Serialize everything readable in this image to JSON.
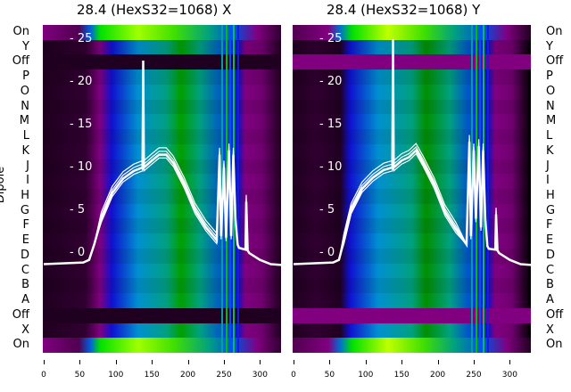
{
  "chart_data": [
    {
      "type": "heatmap",
      "title": "28.4 (HexS32=1068) X",
      "ylabel": "Dipole",
      "xlim": [
        0,
        330
      ],
      "x_ticks": [
        "0",
        "50",
        "100",
        "150",
        "200",
        "250",
        "300"
      ],
      "row_labels": [
        "On",
        "Y",
        "Off",
        "P",
        "O",
        "N",
        "M",
        "L",
        "K",
        "J",
        "I",
        "H",
        "G",
        "F",
        "E",
        "D",
        "C",
        "B",
        "A",
        "Off",
        "X",
        "On"
      ],
      "overlay": {
        "type": "line",
        "y_ticks": [
          "0",
          "5",
          "10",
          "15",
          "20",
          "25"
        ],
        "ylim": [
          -1.2,
          26.5
        ],
        "x": [
          0,
          55,
          63,
          70,
          80,
          95,
          110,
          125,
          137,
          138,
          139,
          150,
          160,
          170,
          180,
          195,
          210,
          225,
          240,
          244,
          246,
          250,
          253,
          257,
          260,
          263,
          266,
          269,
          271,
          280,
          281,
          283,
          285,
          300,
          315,
          330
        ],
        "y": [
          -1.3,
          -1.1,
          -0.8,
          1,
          4,
          7,
          8.7,
          9.6,
          10,
          22.5,
          10,
          10.8,
          11.5,
          11.5,
          10.5,
          8,
          5,
          3,
          1.5,
          11.5,
          2,
          10,
          1.8,
          12,
          2,
          11.5,
          4,
          1,
          0.6,
          0.4,
          6,
          0.3,
          0,
          -0.8,
          -1.3,
          -1.4
        ]
      },
      "colors": {
        "off": "#200020",
        "on_peak": "#a0ff00"
      }
    },
    {
      "type": "heatmap",
      "title": "28.4 (HexS32=1068) Y",
      "xlim": [
        0,
        330
      ],
      "x_ticks": [
        "0",
        "50",
        "100",
        "150",
        "200",
        "250",
        "300"
      ],
      "row_labels": [
        "On",
        "Y",
        "Off",
        "P",
        "O",
        "N",
        "M",
        "L",
        "K",
        "J",
        "I",
        "H",
        "G",
        "F",
        "E",
        "D",
        "C",
        "B",
        "A",
        "Off",
        "X",
        "On"
      ],
      "overlay": {
        "type": "line",
        "y_ticks": [
          "0",
          "5",
          "10",
          "15",
          "20",
          "25"
        ],
        "ylim": [
          -1.2,
          26.5
        ],
        "x": [
          0,
          55,
          63,
          70,
          80,
          95,
          110,
          125,
          137,
          138,
          139,
          150,
          160,
          170,
          180,
          195,
          210,
          225,
          240,
          244,
          246,
          250,
          253,
          257,
          260,
          263,
          266,
          269,
          271,
          280,
          281,
          283,
          285,
          300,
          315,
          330
        ],
        "y": [
          -1.3,
          -1.1,
          -0.8,
          1.5,
          5,
          7.5,
          8.8,
          9.7,
          10,
          25,
          10,
          10.8,
          11.2,
          12,
          10.5,
          8,
          4.8,
          2.8,
          1,
          13,
          2,
          12,
          4,
          12.5,
          3,
          12,
          4,
          0.8,
          0.5,
          0.4,
          4.5,
          0.3,
          0,
          -0.8,
          -1.3,
          -1.4
        ]
      },
      "colors": {
        "off": "#800080",
        "on_peak": "#c0ff00"
      }
    }
  ]
}
